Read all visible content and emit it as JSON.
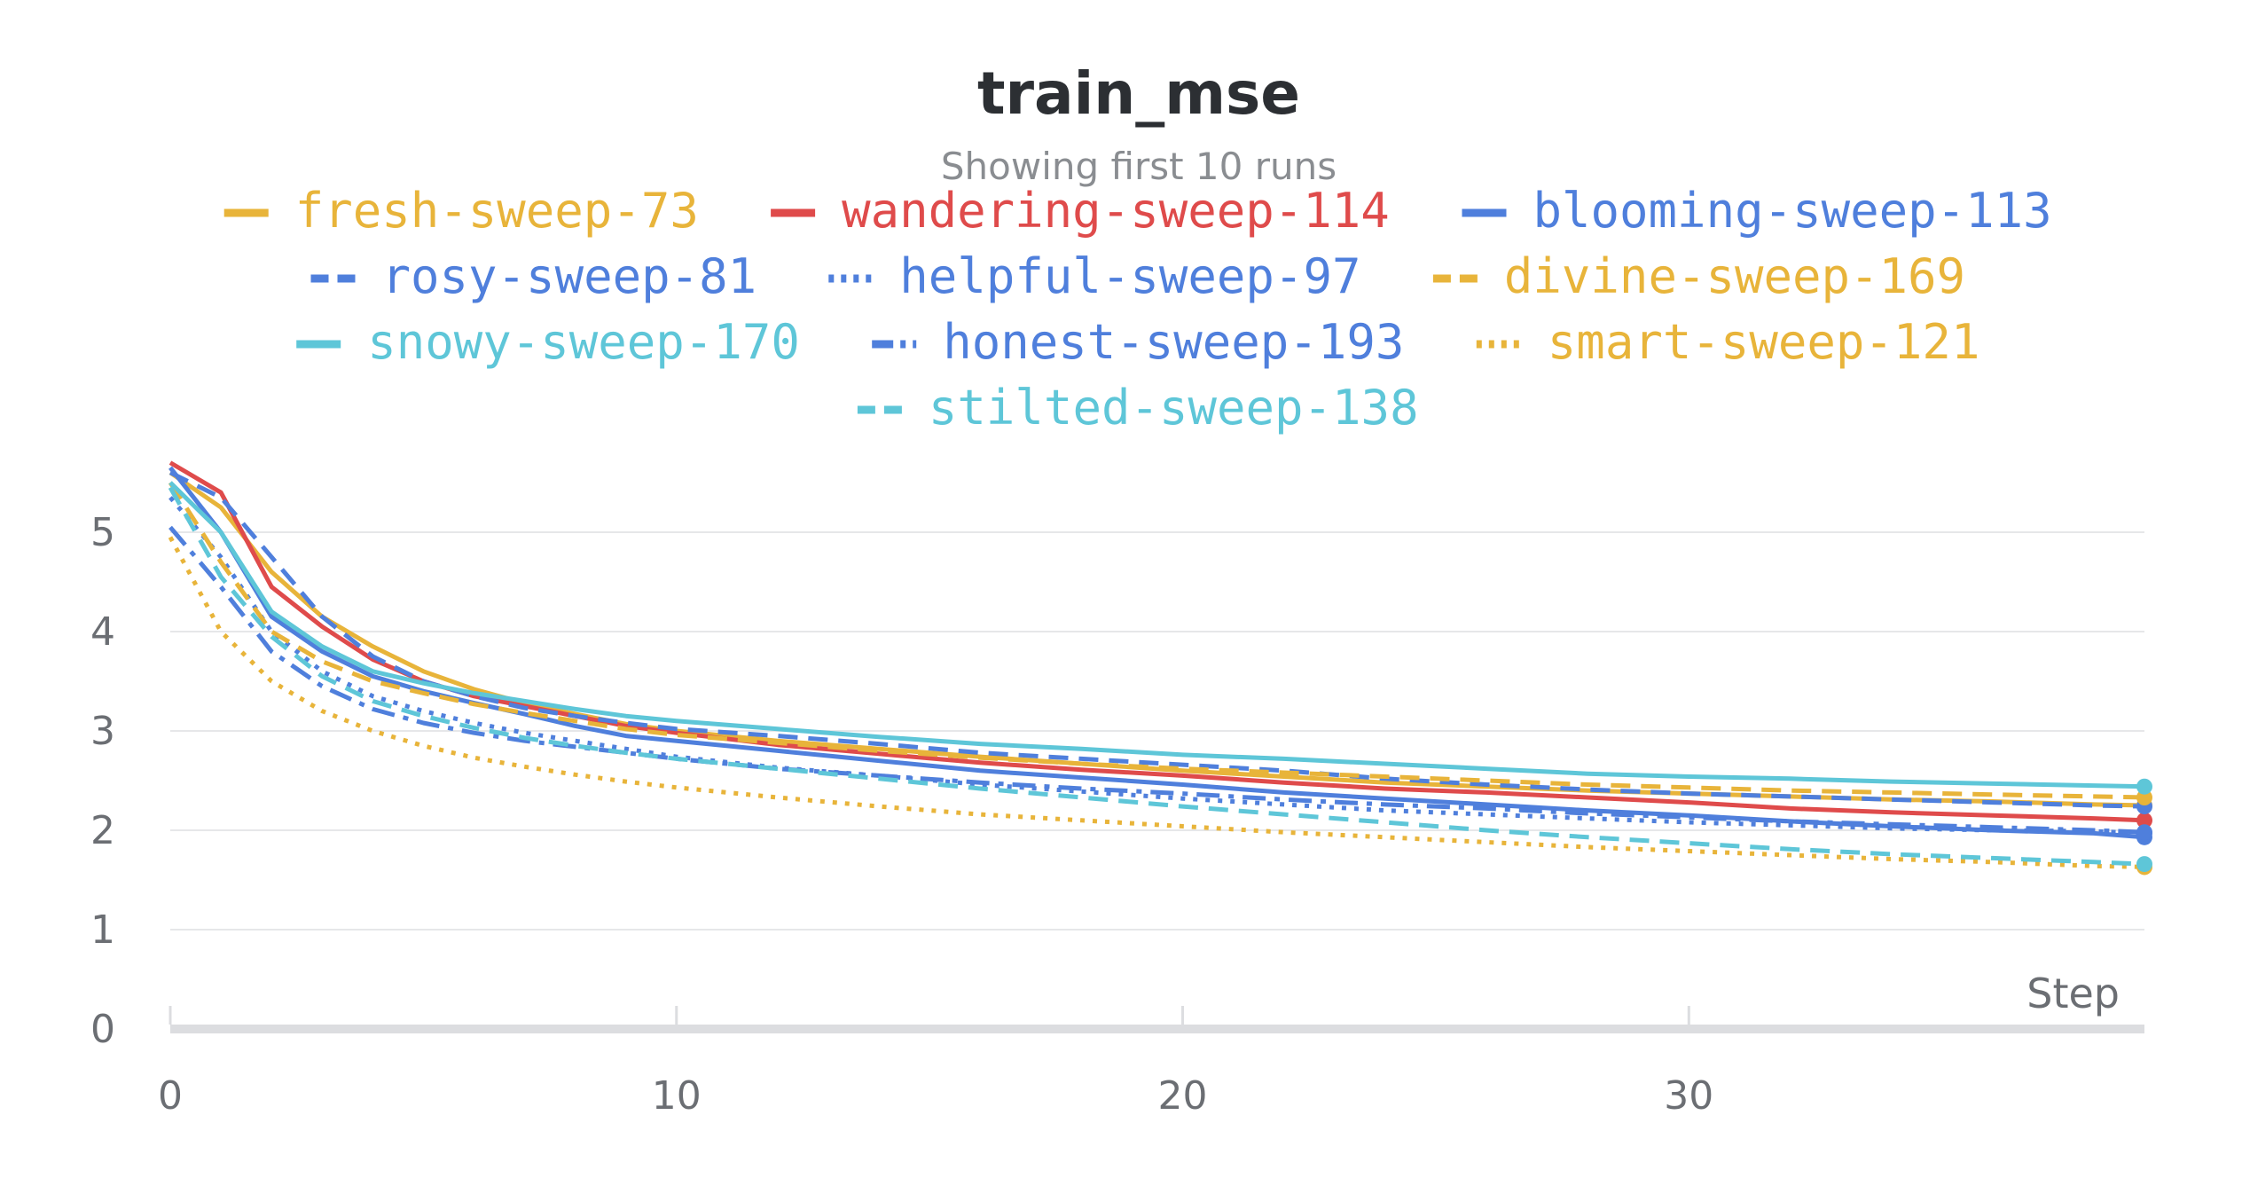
{
  "chart_data": {
    "type": "line",
    "title": "train_mse",
    "subtitle": "Showing first 10 runs",
    "xlabel": "Step",
    "ylabel": "",
    "xlim": [
      0,
      39
    ],
    "ylim": [
      0,
      5.5
    ],
    "xticks": [
      0,
      10,
      20,
      30
    ],
    "yticks": [
      0,
      1,
      2,
      3,
      4,
      5
    ],
    "grid": true,
    "legend_position": "top",
    "x": [
      0,
      1,
      2,
      3,
      4,
      5,
      6,
      7,
      8,
      9,
      10,
      12,
      14,
      16,
      18,
      20,
      22,
      24,
      26,
      28,
      30,
      32,
      34,
      36,
      38,
      39
    ],
    "series": [
      {
        "name": "fresh-sweep-73",
        "color": "#e8b43a",
        "dash": "solid",
        "values": [
          5.6,
          5.25,
          4.6,
          4.15,
          3.85,
          3.6,
          3.42,
          3.28,
          3.17,
          3.07,
          3.0,
          2.9,
          2.82,
          2.74,
          2.67,
          2.6,
          2.54,
          2.48,
          2.44,
          2.4,
          2.37,
          2.34,
          2.31,
          2.29,
          2.26,
          2.25
        ]
      },
      {
        "name": "wandering-sweep-114",
        "color": "#df4b4b",
        "dash": "solid",
        "values": [
          5.7,
          5.4,
          4.45,
          4.05,
          3.72,
          3.5,
          3.35,
          3.25,
          3.15,
          3.05,
          2.98,
          2.86,
          2.77,
          2.68,
          2.61,
          2.55,
          2.48,
          2.42,
          2.38,
          2.33,
          2.28,
          2.22,
          2.18,
          2.15,
          2.12,
          2.1
        ]
      },
      {
        "name": "blooming-sweep-113",
        "color": "#4f7fdc",
        "dash": "solid",
        "values": [
          5.65,
          5.0,
          4.15,
          3.8,
          3.55,
          3.4,
          3.28,
          3.17,
          3.05,
          2.95,
          2.9,
          2.8,
          2.7,
          2.6,
          2.53,
          2.46,
          2.38,
          2.32,
          2.26,
          2.2,
          2.15,
          2.09,
          2.04,
          2.0,
          1.97,
          1.93
        ]
      },
      {
        "name": "rosy-sweep-81",
        "color": "#4f7fdc",
        "dash": "dashed",
        "values": [
          5.6,
          5.35,
          4.75,
          4.15,
          3.75,
          3.5,
          3.35,
          3.23,
          3.15,
          3.08,
          3.02,
          2.95,
          2.87,
          2.78,
          2.72,
          2.66,
          2.6,
          2.52,
          2.46,
          2.41,
          2.37,
          2.34,
          2.31,
          2.28,
          2.25,
          2.24
        ]
      },
      {
        "name": "helpful-sweep-97",
        "color": "#4f7fdc",
        "dash": "dotted",
        "values": [
          5.35,
          4.75,
          4.0,
          3.6,
          3.35,
          3.2,
          3.08,
          2.98,
          2.9,
          2.82,
          2.74,
          2.63,
          2.55,
          2.46,
          2.39,
          2.32,
          2.26,
          2.2,
          2.16,
          2.12,
          2.08,
          2.05,
          2.02,
          2.0,
          1.99,
          1.97
        ]
      },
      {
        "name": "divine-sweep-169",
        "color": "#e8b43a",
        "dash": "dashed",
        "values": [
          5.5,
          4.7,
          4.0,
          3.7,
          3.5,
          3.38,
          3.27,
          3.18,
          3.1,
          3.02,
          2.96,
          2.88,
          2.8,
          2.73,
          2.67,
          2.62,
          2.58,
          2.54,
          2.5,
          2.46,
          2.43,
          2.4,
          2.38,
          2.36,
          2.34,
          2.33
        ]
      },
      {
        "name": "snowy-sweep-170",
        "color": "#5ec6d8",
        "dash": "solid",
        "values": [
          5.5,
          5.0,
          4.2,
          3.85,
          3.6,
          3.48,
          3.38,
          3.3,
          3.22,
          3.15,
          3.1,
          3.02,
          2.94,
          2.87,
          2.82,
          2.76,
          2.72,
          2.67,
          2.62,
          2.57,
          2.54,
          2.52,
          2.49,
          2.47,
          2.45,
          2.44
        ]
      },
      {
        "name": "honest-sweep-193",
        "color": "#4f7fdc",
        "dash": "dashdot",
        "values": [
          5.05,
          4.45,
          3.8,
          3.45,
          3.22,
          3.08,
          2.98,
          2.9,
          2.84,
          2.78,
          2.72,
          2.62,
          2.55,
          2.48,
          2.42,
          2.37,
          2.31,
          2.26,
          2.22,
          2.17,
          2.13,
          2.09,
          2.06,
          2.03,
          2.0,
          1.98
        ]
      },
      {
        "name": "smart-sweep-121",
        "color": "#e8b43a",
        "dash": "dotted",
        "values": [
          4.95,
          4.0,
          3.5,
          3.2,
          3.0,
          2.85,
          2.73,
          2.64,
          2.56,
          2.49,
          2.43,
          2.33,
          2.24,
          2.16,
          2.1,
          2.04,
          1.98,
          1.93,
          1.88,
          1.83,
          1.79,
          1.75,
          1.71,
          1.68,
          1.64,
          1.63
        ]
      },
      {
        "name": "stilted-sweep-138",
        "color": "#5ec6d8",
        "dash": "dashed",
        "values": [
          5.45,
          4.55,
          3.95,
          3.55,
          3.3,
          3.15,
          3.03,
          2.93,
          2.85,
          2.78,
          2.72,
          2.62,
          2.52,
          2.42,
          2.33,
          2.24,
          2.16,
          2.08,
          2.0,
          1.93,
          1.87,
          1.81,
          1.76,
          1.72,
          1.68,
          1.66
        ]
      }
    ]
  }
}
